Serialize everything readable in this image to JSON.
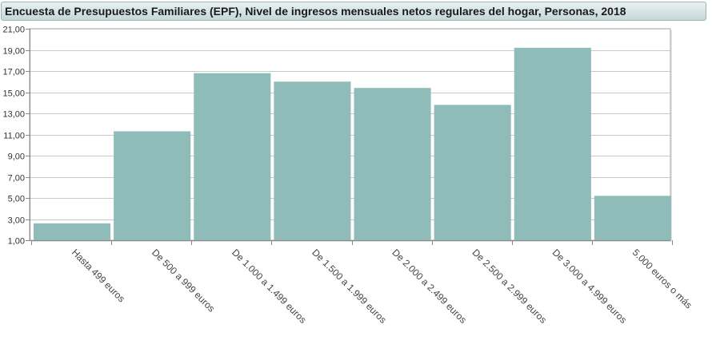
{
  "chart_data": {
    "type": "bar",
    "title": "Encuesta de Presupuestos Familiares (EPF), Nivel de ingresos mensuales netos regulares del hogar, Personas, 2018",
    "categories": [
      "Hasta 499 euros",
      "De 500 a 999 euros",
      "De 1.000 a 1.499 euros",
      "De 1.500 a 1.999 euros",
      "De 2.000 a 2.499 euros",
      "De 2.500 a 2.999 euros",
      "De 3.000 a 4.999 euros",
      "5.000 euros o más"
    ],
    "values": [
      2.6,
      11.3,
      16.8,
      16.0,
      15.4,
      13.8,
      19.2,
      5.2
    ],
    "ylim": [
      1,
      21
    ],
    "yticks": [
      "1,00",
      "3,00",
      "5,00",
      "7,00",
      "9,00",
      "11,00",
      "13,00",
      "15,00",
      "17,00",
      "19,00",
      "21,00"
    ],
    "xlabel": "",
    "ylabel": "",
    "grid": true,
    "colors": {
      "bar": "#8fbcb8",
      "grid": "#c8c8c8",
      "axis": "#888888"
    }
  }
}
